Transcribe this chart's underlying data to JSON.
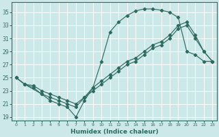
{
  "xlabel": "Humidex (Indice chaleur)",
  "bg_color": "#cde8e8",
  "grid_color": "#ffffff",
  "line_color": "#2e6b5e",
  "xlim": [
    -0.5,
    23.5
  ],
  "ylim": [
    18.5,
    36.5
  ],
  "xticks": [
    0,
    1,
    2,
    3,
    4,
    5,
    6,
    7,
    8,
    9,
    10,
    11,
    12,
    13,
    14,
    15,
    16,
    17,
    18,
    19,
    20,
    21,
    22,
    23
  ],
  "yticks": [
    19,
    21,
    23,
    25,
    27,
    29,
    31,
    33,
    35
  ],
  "curve1_x": [
    0,
    1,
    3,
    4,
    5,
    6,
    7,
    8,
    9,
    10,
    11,
    12,
    13,
    14,
    15,
    16,
    17,
    18,
    19,
    20,
    21,
    22,
    23
  ],
  "curve1_y": [
    25.0,
    24.0,
    22.5,
    21.5,
    21.0,
    20.5,
    19.0,
    21.5,
    23.5,
    27.5,
    32.0,
    33.5,
    34.5,
    35.2,
    35.5,
    35.5,
    35.3,
    35.0,
    34.2,
    29.0,
    28.5,
    27.5,
    27.5
  ],
  "curve2_x": [
    0,
    1,
    2,
    3,
    4,
    5,
    6,
    7,
    8,
    9,
    10,
    11,
    12,
    13,
    14,
    15,
    16,
    17,
    18,
    19,
    20,
    21,
    22,
    23
  ],
  "curve2_y": [
    25.0,
    24.0,
    23.5,
    22.5,
    22.0,
    21.5,
    21.0,
    20.5,
    22.0,
    23.5,
    24.5,
    25.5,
    26.5,
    27.5,
    28.0,
    29.0,
    30.0,
    30.5,
    31.5,
    33.0,
    33.5,
    31.5,
    29.0,
    27.5
  ],
  "curve3_x": [
    0,
    1,
    2,
    3,
    4,
    5,
    6,
    7,
    8,
    9,
    10,
    11,
    12,
    13,
    14,
    15,
    16,
    17,
    18,
    19,
    20,
    21,
    22,
    23
  ],
  "curve3_y": [
    25.0,
    24.0,
    23.8,
    23.0,
    22.5,
    22.0,
    21.5,
    21.0,
    22.0,
    23.0,
    24.0,
    25.0,
    26.0,
    27.0,
    27.5,
    28.5,
    29.5,
    30.0,
    31.0,
    32.5,
    33.0,
    31.0,
    29.0,
    27.5
  ]
}
